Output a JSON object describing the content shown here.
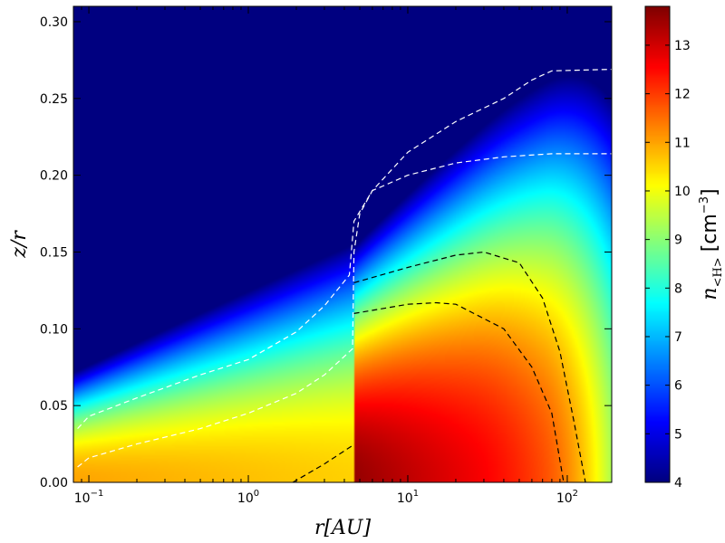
{
  "chart_data": {
    "type": "heatmap",
    "title": "",
    "xlabel": "r[AU]",
    "ylabel": "z/r",
    "xscale": "log",
    "xlim": [
      0.08,
      190
    ],
    "ylim": [
      0.0,
      0.31
    ],
    "x_ticks": [
      {
        "value": 0.1,
        "base": "10",
        "exp": "−1"
      },
      {
        "value": 1,
        "base": "10",
        "exp": "0"
      },
      {
        "value": 10,
        "base": "10",
        "exp": "1"
      },
      {
        "value": 100,
        "base": "10",
        "exp": "2"
      }
    ],
    "y_ticks": [
      {
        "value": 0.0,
        "label": "0.00"
      },
      {
        "value": 0.05,
        "label": "0.05"
      },
      {
        "value": 0.1,
        "label": "0.10"
      },
      {
        "value": 0.15,
        "label": "0.15"
      },
      {
        "value": 0.2,
        "label": "0.20"
      },
      {
        "value": 0.25,
        "label": "0.25"
      },
      {
        "value": 0.3,
        "label": "0.30"
      }
    ],
    "colorbar": {
      "label_symbol": "n",
      "label_subscript": "<H>",
      "label_unit": "[cm",
      "label_unit_exp": "−3",
      "label_unit_close": "]",
      "colormap": "jet",
      "range": [
        4,
        13.8
      ],
      "ticks": [
        {
          "value": 4,
          "label": "4"
        },
        {
          "value": 5,
          "label": "5"
        },
        {
          "value": 6,
          "label": "6"
        },
        {
          "value": 7,
          "label": "7"
        },
        {
          "value": 8,
          "label": "8"
        },
        {
          "value": 9,
          "label": "9"
        },
        {
          "value": 10,
          "label": "10"
        },
        {
          "value": 11,
          "label": "11"
        },
        {
          "value": 12,
          "label": "12"
        },
        {
          "value": 13,
          "label": "13"
        }
      ]
    },
    "discontinuity_r_au": 4.6,
    "background_value": 4,
    "contours": [
      {
        "color": "#ffffff",
        "style": "dashed",
        "points": [
          [
            0.085,
            0.035
          ],
          [
            0.1,
            0.043
          ],
          [
            0.2,
            0.055
          ],
          [
            0.5,
            0.07
          ],
          [
            1,
            0.08
          ],
          [
            2,
            0.098
          ],
          [
            3,
            0.115
          ],
          [
            4.3,
            0.135
          ],
          [
            4.6,
            0.17
          ],
          [
            6,
            0.19
          ],
          [
            10,
            0.2
          ],
          [
            20,
            0.208
          ],
          [
            40,
            0.212
          ],
          [
            80,
            0.214
          ],
          [
            190,
            0.214
          ]
        ]
      },
      {
        "color": "#ffffff",
        "style": "dashed",
        "points": [
          [
            0.085,
            0.01
          ],
          [
            0.1,
            0.016
          ],
          [
            0.2,
            0.025
          ],
          [
            0.5,
            0.035
          ],
          [
            1,
            0.045
          ],
          [
            2,
            0.058
          ],
          [
            3,
            0.07
          ],
          [
            4.5,
            0.087
          ],
          [
            4.6,
            0.15
          ],
          [
            5,
            0.175
          ],
          [
            6,
            0.19
          ],
          [
            10,
            0.215
          ],
          [
            20,
            0.235
          ],
          [
            40,
            0.25
          ],
          [
            60,
            0.262
          ],
          [
            80,
            0.268
          ],
          [
            190,
            0.269
          ]
        ]
      },
      {
        "color": "#000000",
        "style": "dashed",
        "points": [
          [
            4.6,
            0.13
          ],
          [
            10,
            0.14
          ],
          [
            20,
            0.148
          ],
          [
            30,
            0.15
          ],
          [
            50,
            0.143
          ],
          [
            70,
            0.12
          ],
          [
            90,
            0.085
          ],
          [
            110,
            0.04
          ],
          [
            130,
            0.0
          ]
        ]
      },
      {
        "color": "#000000",
        "style": "dashed",
        "points": [
          [
            4.6,
            0.11
          ],
          [
            10,
            0.116
          ],
          [
            15,
            0.117
          ],
          [
            20,
            0.116
          ],
          [
            40,
            0.1
          ],
          [
            60,
            0.075
          ],
          [
            80,
            0.045
          ],
          [
            95,
            0.0
          ]
        ]
      },
      {
        "color": "#000000",
        "style": "dashed",
        "points": [
          [
            1.9,
            0.0
          ],
          [
            3,
            0.012
          ],
          [
            4.5,
            0.024
          ]
        ]
      }
    ]
  }
}
